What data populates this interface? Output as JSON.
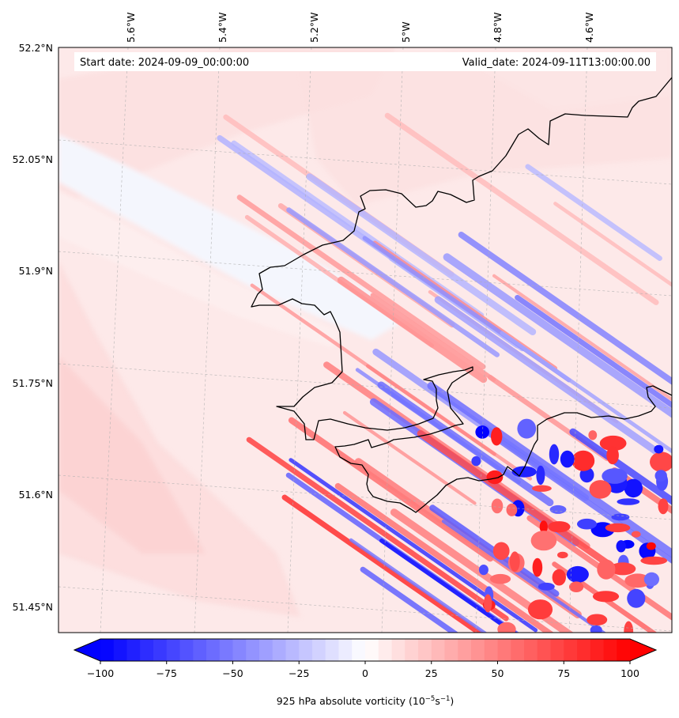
{
  "map": {
    "start_date": "Start date: 2024-09-09_00:00:00",
    "valid_date": "Valid_date: 2024-09-11T13:00:00.00",
    "longitude_labels": [
      "5.6°W",
      "5.4°W",
      "5.2°W",
      "5°W",
      "4.8°W",
      "4.6°W"
    ],
    "latitude_labels": [
      "52.2°N",
      "52.05°N",
      "51.9°N",
      "51.75°N",
      "51.6°N",
      "51.45°N"
    ],
    "field": "925 hPa absolute vorticity",
    "colors": {
      "negative": "#0000ff",
      "zero": "#ffffff",
      "positive": "#ff0000",
      "coastline": "#000000",
      "gridline": "#b0b0b0"
    }
  },
  "colorbar": {
    "label_main": "925 hPa absolute vorticity (10",
    "label_exp1": "−5",
    "label_mid": "s",
    "label_exp2": "−1",
    "label_end": ")",
    "min": -100,
    "max": 100,
    "step": 5,
    "extend": "both",
    "ticks": [
      "−100",
      "−75",
      "−50",
      "−25",
      "0",
      "25",
      "50",
      "75",
      "100"
    ]
  }
}
